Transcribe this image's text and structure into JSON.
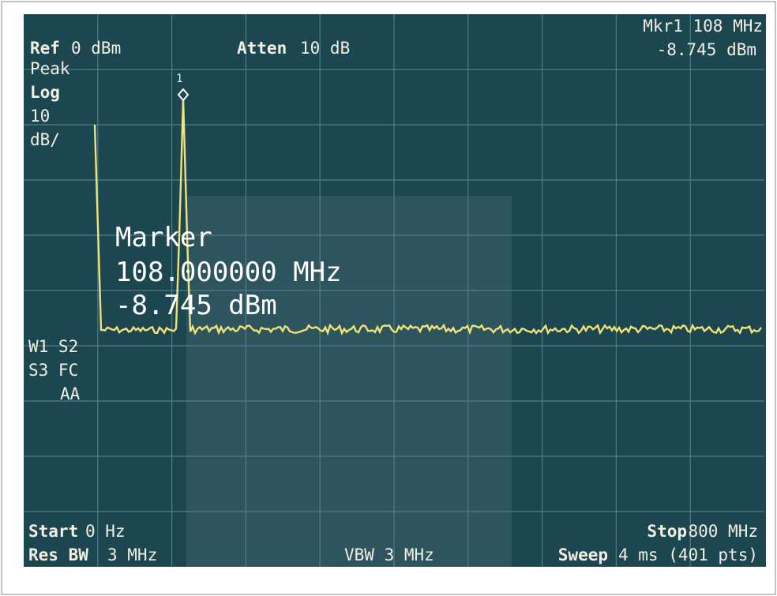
{
  "header": {
    "ref_label": "Ref",
    "ref_value": "0 dBm",
    "atten_label": "Atten",
    "atten_value": "10 dB",
    "marker_freq": "Mkr1 108 MHz",
    "marker_level": "-8.745 dBm"
  },
  "left_panel": {
    "detector": "Peak",
    "scale": "Log",
    "scale_value": "10",
    "scale_unit": "dB/",
    "flags": [
      "W1 S2",
      "S3 FC",
      "AA"
    ]
  },
  "marker_box": {
    "title": "Marker",
    "frequency": "108.000000 MHz",
    "level": "-8.745 dBm",
    "marker_id": "1"
  },
  "footer": {
    "start_label": "Start",
    "start_value": "0 Hz",
    "rbw_label": "Res BW",
    "rbw_value": "3 MHz",
    "vbw": "VBW 3 MHz",
    "stop_label": "Stop",
    "stop_value": "800 MHz",
    "sweep_label": "Sweep",
    "sweep_value": "4 ms (401 pts)"
  }
}
